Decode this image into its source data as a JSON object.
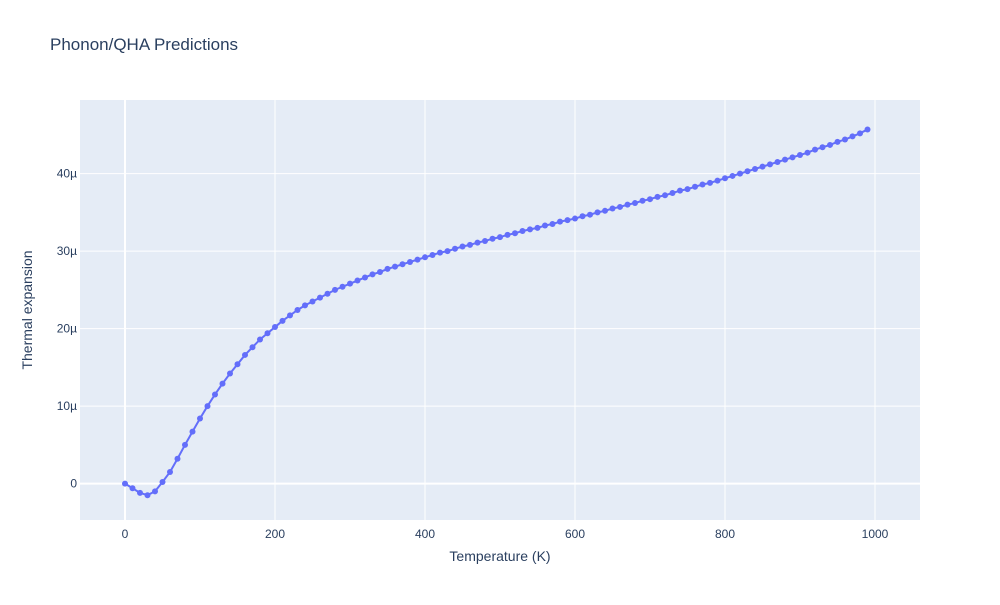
{
  "chart_data": {
    "type": "line",
    "title": "Phonon/QHA Predictions",
    "xlabel": "Temperature (K)",
    "ylabel": "Thermal expansion",
    "xlim": [
      -60,
      1060
    ],
    "ylim": [
      -4.7e-06,
      4.95e-05
    ],
    "x_ticks": [
      0,
      200,
      400,
      600,
      800,
      1000
    ],
    "x_tick_labels": [
      "0",
      "200",
      "400",
      "600",
      "800",
      "1000"
    ],
    "y_ticks": [
      0,
      1e-05,
      2e-05,
      3e-05,
      4e-05
    ],
    "y_tick_labels": [
      "0",
      "10µ",
      "20µ",
      "30µ",
      "40µ"
    ],
    "grid": true,
    "legend": "none",
    "colors": {
      "line": "#636efa",
      "plot_bg": "#e5ecf6",
      "grid": "#ffffff",
      "text": "#2a3f5f"
    },
    "series": [
      {
        "mode": "lines+markers",
        "x": [
          0,
          10,
          20,
          30,
          40,
          50,
          60,
          70,
          80,
          90,
          100,
          110,
          120,
          130,
          140,
          150,
          160,
          170,
          180,
          190,
          200,
          210,
          220,
          230,
          240,
          250,
          260,
          270,
          280,
          290,
          300,
          310,
          320,
          330,
          340,
          350,
          360,
          370,
          380,
          390,
          400,
          410,
          420,
          430,
          440,
          450,
          460,
          470,
          480,
          490,
          500,
          510,
          520,
          530,
          540,
          550,
          560,
          570,
          580,
          590,
          600,
          610,
          620,
          630,
          640,
          650,
          660,
          670,
          680,
          690,
          700,
          710,
          720,
          730,
          740,
          750,
          760,
          770,
          780,
          790,
          800,
          810,
          820,
          830,
          840,
          850,
          860,
          870,
          880,
          890,
          900,
          910,
          920,
          930,
          940,
          950,
          960,
          970,
          980,
          990
        ],
        "y": [
          0.0,
          -6e-07,
          -1.2e-06,
          -1.5e-06,
          -1e-06,
          2e-07,
          1.5e-06,
          3.2e-06,
          5e-06,
          6.7e-06,
          8.4e-06,
          1e-05,
          1.15e-05,
          1.29e-05,
          1.42e-05,
          1.54e-05,
          1.66e-05,
          1.76e-05,
          1.86e-05,
          1.94e-05,
          2.02e-05,
          2.1e-05,
          2.17e-05,
          2.24e-05,
          2.3e-05,
          2.35e-05,
          2.4e-05,
          2.45e-05,
          2.5e-05,
          2.54e-05,
          2.58e-05,
          2.62e-05,
          2.66e-05,
          2.7e-05,
          2.73e-05,
          2.77e-05,
          2.8e-05,
          2.83e-05,
          2.86e-05,
          2.89e-05,
          2.92e-05,
          2.95e-05,
          2.98e-05,
          3e-05,
          3.03e-05,
          3.06e-05,
          3.08e-05,
          3.11e-05,
          3.13e-05,
          3.16e-05,
          3.18e-05,
          3.21e-05,
          3.23e-05,
          3.26e-05,
          3.28e-05,
          3.3e-05,
          3.33e-05,
          3.35e-05,
          3.38e-05,
          3.4e-05,
          3.42e-05,
          3.45e-05,
          3.47e-05,
          3.5e-05,
          3.52e-05,
          3.55e-05,
          3.57e-05,
          3.6e-05,
          3.62e-05,
          3.65e-05,
          3.67e-05,
          3.7e-05,
          3.72e-05,
          3.75e-05,
          3.78e-05,
          3.8e-05,
          3.83e-05,
          3.86e-05,
          3.88e-05,
          3.91e-05,
          3.94e-05,
          3.97e-05,
          4e-05,
          4.03e-05,
          4.06e-05,
          4.09e-05,
          4.12e-05,
          4.15e-05,
          4.18e-05,
          4.21e-05,
          4.24e-05,
          4.27e-05,
          4.31e-05,
          4.34e-05,
          4.37e-05,
          4.41e-05,
          4.44e-05,
          4.48e-05,
          4.52e-05,
          4.57e-05
        ]
      }
    ]
  }
}
